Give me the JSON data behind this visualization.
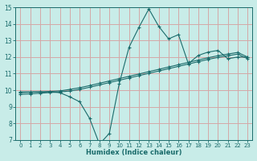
{
  "xlabel": "Humidex (Indice chaleur)",
  "xlim": [
    -0.5,
    23.5
  ],
  "ylim": [
    7,
    15
  ],
  "xticks": [
    0,
    1,
    2,
    3,
    4,
    5,
    6,
    7,
    8,
    9,
    10,
    11,
    12,
    13,
    14,
    15,
    16,
    17,
    18,
    19,
    20,
    21,
    22,
    23
  ],
  "yticks": [
    7,
    8,
    9,
    10,
    11,
    12,
    13,
    14,
    15
  ],
  "background_color": "#c8ece8",
  "grid_color": "#d4a8a8",
  "line_color": "#1a6b6b",
  "line1_x": [
    0,
    1,
    2,
    3,
    4,
    5,
    6,
    7,
    8,
    9,
    10,
    11,
    12,
    13,
    14,
    15,
    16,
    17,
    18,
    19,
    20,
    21,
    22,
    23
  ],
  "line1_y": [
    9.9,
    9.9,
    9.9,
    9.9,
    9.85,
    9.6,
    9.3,
    8.3,
    6.75,
    7.4,
    10.4,
    12.6,
    13.8,
    14.9,
    13.85,
    13.1,
    13.35,
    11.6,
    12.1,
    12.3,
    12.4,
    11.9,
    12.0,
    12.0
  ],
  "line2_x": [
    0,
    1,
    2,
    3,
    4,
    5,
    6,
    7,
    8,
    9,
    10,
    11,
    12,
    13,
    14,
    15,
    16,
    17,
    18,
    19,
    20,
    21,
    22,
    23
  ],
  "line2_y": [
    9.85,
    9.88,
    9.9,
    9.93,
    9.96,
    10.05,
    10.15,
    10.28,
    10.42,
    10.56,
    10.7,
    10.84,
    10.98,
    11.12,
    11.26,
    11.4,
    11.54,
    11.68,
    11.82,
    11.96,
    12.08,
    12.18,
    12.28,
    12.0
  ],
  "line3_x": [
    0,
    1,
    2,
    3,
    4,
    5,
    6,
    7,
    8,
    9,
    10,
    11,
    12,
    13,
    14,
    15,
    16,
    17,
    18,
    19,
    20,
    21,
    22,
    23
  ],
  "line3_y": [
    9.75,
    9.78,
    9.82,
    9.86,
    9.9,
    9.95,
    10.05,
    10.18,
    10.32,
    10.46,
    10.6,
    10.74,
    10.88,
    11.02,
    11.16,
    11.3,
    11.44,
    11.58,
    11.72,
    11.86,
    11.98,
    12.08,
    12.18,
    11.9
  ]
}
